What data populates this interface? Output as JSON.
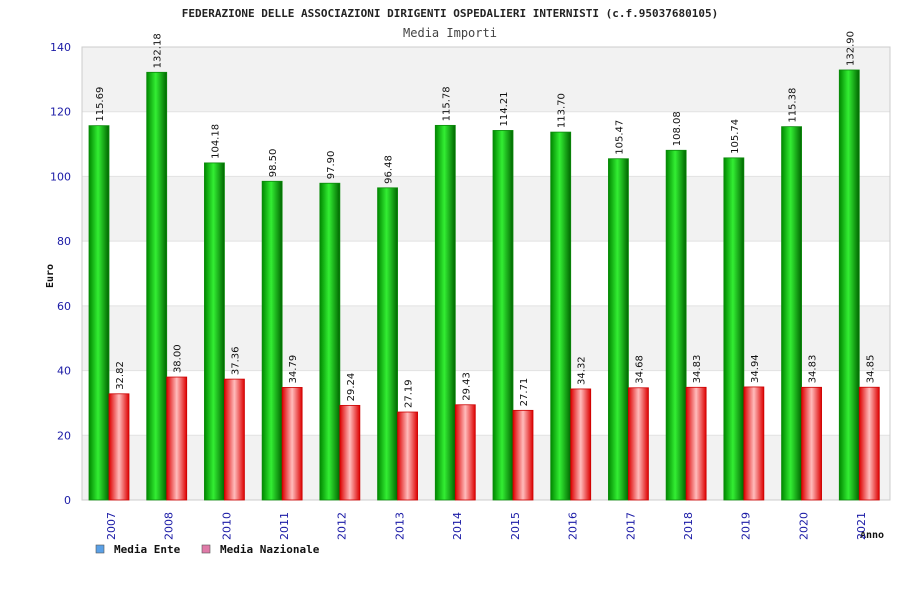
{
  "chart_data": {
    "type": "bar",
    "title": "FEDERAZIONE DELLE ASSOCIAZIONI DIRIGENTI OSPEDALIERI INTERNISTI (c.f.95037680105)",
    "subtitle": "Media Importi",
    "ylabel": "Euro",
    "xlabel": "Anno",
    "ylim": [
      0,
      140
    ],
    "yticks": [
      0,
      20,
      40,
      60,
      80,
      100,
      120,
      140
    ],
    "grid": "horizontal bands",
    "legend_position": "bottom-left",
    "categories": [
      "2007",
      "2008",
      "2010",
      "2011",
      "2012",
      "2013",
      "2014",
      "2015",
      "2016",
      "2017",
      "2018",
      "2019",
      "2020",
      "2021"
    ],
    "series": [
      {
        "name": "Media Ente",
        "legend_color": "#5aa0e6",
        "bar_color": "#00bb00",
        "values": [
          115.69,
          132.18,
          104.18,
          98.5,
          97.9,
          96.48,
          115.78,
          114.21,
          113.7,
          105.47,
          108.08,
          105.74,
          115.38,
          132.9
        ],
        "labels": [
          "115.69",
          "132.18",
          "104.18",
          "98.50",
          "97.90",
          "96.48",
          "115.78",
          "114.21",
          "113.70",
          "105.47",
          "108.08",
          "105.74",
          "115.38",
          "132.90"
        ]
      },
      {
        "name": "Media Nazionale",
        "legend_color": "#e07aa8",
        "bar_color": "#ee1111",
        "values": [
          32.82,
          38.0,
          37.36,
          34.79,
          29.24,
          27.19,
          29.43,
          27.71,
          34.32,
          34.68,
          34.83,
          34.94,
          34.83,
          34.85
        ],
        "labels": [
          "32.82",
          "38.00",
          "37.36",
          "34.79",
          "29.24",
          "27.19",
          "29.43",
          "27.71",
          "34.32",
          "34.68",
          "34.83",
          "34.94",
          "34.83",
          "34.85"
        ]
      }
    ]
  }
}
